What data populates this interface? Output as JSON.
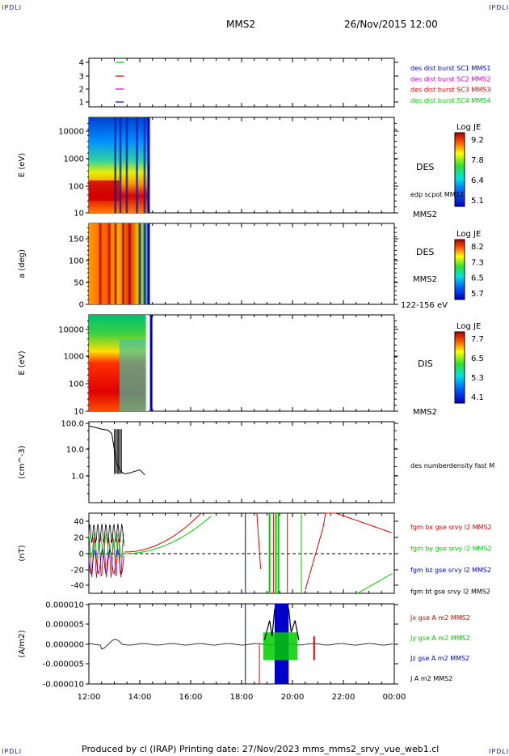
{
  "corners": {
    "tl": "IPDLI",
    "tr": "IPDLI",
    "bl": "IPDLI",
    "br": "IPDLI"
  },
  "header": {
    "title": "MMS2",
    "date": "26/Nov/2015 12:00"
  },
  "footer": {
    "text": "Produced by cl (IRAP)   Printing date: 27/Nov/2023   mms_mms2_srvy_vue_web1.cl"
  },
  "colors": {
    "mms1": "#0000cc",
    "mms2": "#cc00cc",
    "mms3": "#dd0000",
    "mms4": "#00cc00",
    "bx": "#dd0000",
    "by": "#00cc00",
    "bz": "#0000cc",
    "bt": "#000000"
  },
  "xaxis": {
    "ticks": [
      "12:00",
      "14:00",
      "16:00",
      "18:00",
      "20:00",
      "22:00",
      "00:00"
    ]
  },
  "chart_data": [
    {
      "type": "line",
      "title": "",
      "ylabel": "",
      "yticks": [
        "4",
        "3",
        "2",
        "1"
      ],
      "legend": [
        "des dist burst SC1 MMS1",
        "des dist burst SC2 MMS2",
        "des dist burst SC3 MMS3",
        "des dist burst SC4 MMS4"
      ],
      "series": [
        {
          "name": "des dist burst SC4 MMS4",
          "y": 4,
          "color": "#00cc00"
        },
        {
          "name": "des dist burst SC3 MMS3",
          "y": 3,
          "color": "#dd0000"
        },
        {
          "name": "des dist burst SC2 MMS2",
          "y": 2,
          "color": "#cc00cc"
        },
        {
          "name": "des dist burst SC1 MMS1",
          "y": 1,
          "color": "#0000cc"
        }
      ]
    },
    {
      "type": "heatmap",
      "ylabel": "E (eV)",
      "yticks": [
        "10000",
        "1000",
        "100",
        "10"
      ],
      "scale": "log",
      "colorbar": {
        "title": "Log JE",
        "ticks": [
          "9.2",
          "7.8",
          "6.4",
          "5.1"
        ]
      },
      "labels": [
        "DES",
        "edp scpot MMS2",
        "MMS2"
      ]
    },
    {
      "type": "heatmap",
      "ylabel": "a (deg)",
      "yticks": [
        "150",
        "100",
        "50",
        "0"
      ],
      "colorbar": {
        "title": "Log JE",
        "ticks": [
          "8.2",
          "7.3",
          "6.5",
          "5.7"
        ]
      },
      "labels": [
        "DES",
        "MMS2",
        "122-156 eV"
      ]
    },
    {
      "type": "heatmap",
      "ylabel": "E (eV)",
      "yticks": [
        "10000",
        "1000",
        "100",
        "10"
      ],
      "scale": "log",
      "colorbar": {
        "title": "Log JE",
        "ticks": [
          "7.7",
          "6.5",
          "5.3",
          "4.1"
        ]
      },
      "labels": [
        "DIS",
        "MMS2"
      ]
    },
    {
      "type": "line",
      "ylabel": "(cm^-3)",
      "yticks": [
        "100.0",
        "10.0",
        "1.0"
      ],
      "scale": "log",
      "legend": [
        "des numberdensity fast M"
      ],
      "series": [
        {
          "name": "des numberdensity fast M",
          "x": [
            12.0,
            12.25,
            12.5,
            12.75,
            12.9,
            13.0,
            13.1,
            13.25,
            13.4,
            13.6,
            13.8,
            14.0,
            14.2
          ],
          "y": [
            80,
            70,
            60,
            55,
            40,
            10,
            3,
            1.5,
            1.2,
            1.3,
            1.5,
            1.7,
            1.1
          ]
        }
      ]
    },
    {
      "type": "line",
      "ylabel": "(nT)",
      "yticks": [
        "40",
        "20",
        "0",
        "-20",
        "-40"
      ],
      "legend": [
        "fgm bx gse srvy l2 MMS2",
        "fgm by gse srvy l2 MMS2",
        "fgm bz gse srvy l2 MMS2",
        "fgm bt gse srvy l2 MMS2"
      ]
    },
    {
      "type": "line",
      "ylabel": "(A/m2)",
      "yticks": [
        "0.000010",
        "0.000005",
        "0.000000",
        "-0.000005",
        "-0.000010"
      ],
      "legend": [
        "Jx gse A m2 MMS2",
        "Jy gse A m2 MMS2",
        "Jz gse A m2 MMS2",
        "J A m2 MMS2"
      ]
    }
  ]
}
